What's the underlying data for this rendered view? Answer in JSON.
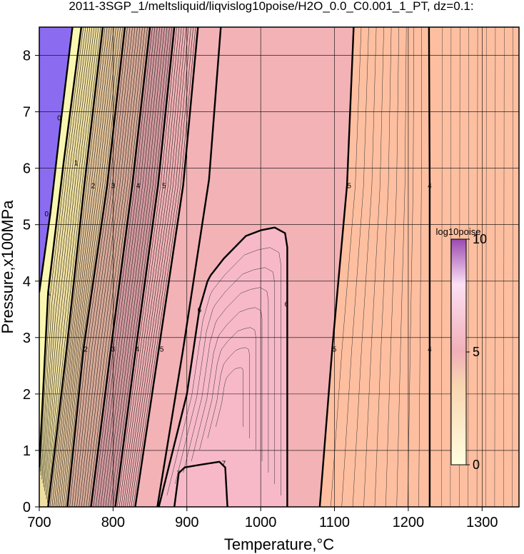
{
  "chart_data": {
    "type": "heatmap",
    "title": "2011-3SGP_1/meltsliquid/liqvislog10poise/H2O_0.0_C0.001_1_PT, dz=0.1:",
    "xlabel": "Temperature,°C",
    "ylabel": "Pressure,x100MPa",
    "xlim": [
      700,
      1350
    ],
    "ylim": [
      0,
      8.5
    ],
    "x_ticks": [
      "700",
      "800",
      "900",
      "1000",
      "1100",
      "1200",
      "1300"
    ],
    "y_ticks": [
      "0",
      "1",
      "2",
      "3",
      "4",
      "5",
      "6",
      "7",
      "8"
    ],
    "grid": true,
    "colorbar": {
      "label": "log10poise",
      "ticks": [
        "0",
        "5",
        "10"
      ],
      "range": [
        0,
        10
      ],
      "placement": "right-inside"
    },
    "colors": {
      "region_below_0": "#8b6cf0",
      "region_0_1": "#fbf7b0",
      "region_1_2": "#f0e0a0",
      "region_2_3": "#e3c49a",
      "region_3_4": "#d8aa98",
      "region_4_5": "#d39aa0",
      "region_5_6": "#f2b2b6",
      "region_6_7": "#f7b9c8",
      "region_high_T": "#fdbfa0",
      "colorbar_low": "#ffffe0",
      "colorbar_mid": "#f0b0b8",
      "colorbar_high": "#9a4ab0"
    },
    "contour_labels": [
      {
        "text": "0",
        "t": 727,
        "p": 6.9
      },
      {
        "text": "0",
        "t": 710,
        "p": 5.2
      },
      {
        "text": "1",
        "t": 750,
        "p": 6.1
      },
      {
        "text": "1",
        "t": 713,
        "p": 3.8
      },
      {
        "text": "2",
        "t": 773,
        "p": 5.7
      },
      {
        "text": "2",
        "t": 763,
        "p": 2.8
      },
      {
        "text": "3",
        "t": 800,
        "p": 5.7
      },
      {
        "text": "3",
        "t": 800,
        "p": 2.8
      },
      {
        "text": "4",
        "t": 834,
        "p": 5.7
      },
      {
        "text": "4",
        "t": 833,
        "p": 2.8
      },
      {
        "text": "5",
        "t": 869,
        "p": 5.7
      },
      {
        "text": "5",
        "t": 866,
        "p": 2.8
      },
      {
        "text": "6",
        "t": 917,
        "p": 3.5
      },
      {
        "text": "6",
        "t": 1035,
        "p": 3.6
      },
      {
        "text": "7",
        "t": 889,
        "p": 0.6
      },
      {
        "text": "7",
        "t": 950,
        "p": 0.78
      },
      {
        "text": "5",
        "t": 1120,
        "p": 5.7
      },
      {
        "text": "5",
        "t": 1100,
        "p": 2.8
      },
      {
        "text": "4",
        "t": 1229,
        "p": 5.7
      },
      {
        "text": "4",
        "t": 1229,
        "p": 2.8
      }
    ],
    "contours": [
      {
        "level": 0,
        "points": [
          [
            700,
            3.8
          ],
          [
            715,
            5.2
          ],
          [
            730,
            6.9
          ],
          [
            745,
            8.5
          ]
        ]
      },
      {
        "level": 1,
        "points": [
          [
            700,
            0.7
          ],
          [
            712,
            3.8
          ],
          [
            733,
            6.1
          ],
          [
            757,
            8.5
          ]
        ]
      },
      {
        "level": 2,
        "points": [
          [
            712,
            0
          ],
          [
            737,
            2.8
          ],
          [
            761,
            5.7
          ],
          [
            786,
            8.5
          ]
        ]
      },
      {
        "level": 3,
        "points": [
          [
            738,
            0
          ],
          [
            760,
            2.8
          ],
          [
            792,
            5.7
          ],
          [
            816,
            8.5
          ]
        ]
      },
      {
        "level": 4,
        "points": [
          [
            770,
            0
          ],
          [
            797,
            2.8
          ],
          [
            826,
            5.7
          ],
          [
            850,
            8.5
          ]
        ]
      },
      {
        "level": 5,
        "points": [
          [
            803,
            0
          ],
          [
            831,
            2.8
          ],
          [
            861,
            5.7
          ],
          [
            883,
            8.5
          ]
        ]
      },
      {
        "level": 6,
        "points": [
          [
            830,
            0
          ],
          [
            862,
            2.8
          ],
          [
            895,
            5.7
          ],
          [
            915,
            8.5
          ]
        ]
      },
      {
        "level": 7,
        "points": [
          [
            860,
            0
          ],
          [
            895,
            2.8
          ],
          [
            930,
            5.8
          ],
          [
            946,
            8.5
          ]
        ]
      },
      {
        "level": 6,
        "points": [
          [
            862,
            0
          ],
          [
            900,
            2.0
          ],
          [
            917,
            3.5
          ],
          [
            928,
            4.0
          ],
          [
            932,
            4.1
          ],
          [
            950,
            4.4
          ],
          [
            980,
            4.8
          ],
          [
            1000,
            4.9
          ],
          [
            1019,
            4.95
          ],
          [
            1033,
            4.85
          ],
          [
            1036,
            4.6
          ],
          [
            1036,
            0
          ]
        ]
      },
      {
        "level": 7,
        "points": [
          [
            883,
            0
          ],
          [
            889,
            0.6
          ],
          [
            897,
            0.7
          ],
          [
            920,
            0.75
          ],
          [
            944,
            0.8
          ],
          [
            952,
            0.7
          ],
          [
            955,
            0
          ]
        ]
      },
      {
        "level": 5,
        "points": [
          [
            1080,
            0
          ],
          [
            1097,
            2.8
          ],
          [
            1117,
            5.7
          ],
          [
            1126,
            8.5
          ]
        ]
      },
      {
        "level": 4,
        "points": [
          [
            1229,
            0
          ],
          [
            1229,
            2.8
          ],
          [
            1229,
            5.7
          ],
          [
            1228,
            8.5
          ]
        ]
      }
    ]
  }
}
